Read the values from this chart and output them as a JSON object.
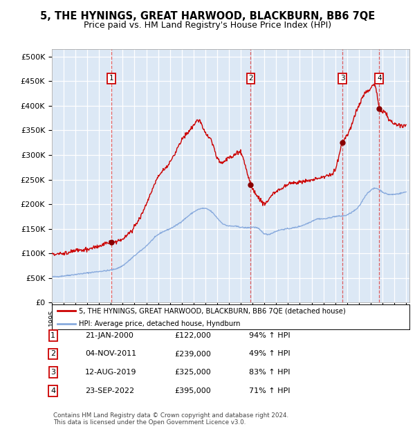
{
  "title": "5, THE HYNINGS, GREAT HARWOOD, BLACKBURN, BB6 7QE",
  "subtitle": "Price paid vs. HM Land Registry's House Price Index (HPI)",
  "title_fontsize": 10.5,
  "subtitle_fontsize": 9,
  "ylabel_ticks": [
    "£0",
    "£50K",
    "£100K",
    "£150K",
    "£200K",
    "£250K",
    "£300K",
    "£350K",
    "£400K",
    "£450K",
    "£500K"
  ],
  "ytick_values": [
    0,
    50000,
    100000,
    150000,
    200000,
    250000,
    300000,
    350000,
    400000,
    450000,
    500000
  ],
  "ylim": [
    0,
    515000
  ],
  "background_color": "#dce8f5",
  "legend_label_red": "5, THE HYNINGS, GREAT HARWOOD, BLACKBURN, BB6 7QE (detached house)",
  "legend_label_blue": "HPI: Average price, detached house, Hyndburn",
  "sales": [
    {
      "label": "1",
      "date": 2000.05,
      "price": 122000,
      "x_label": "21-JAN-2000",
      "price_label": "£122,000",
      "hpi_pct": "94%"
    },
    {
      "label": "2",
      "date": 2011.84,
      "price": 239000,
      "x_label": "04-NOV-2011",
      "price_label": "£239,000",
      "hpi_pct": "49%"
    },
    {
      "label": "3",
      "date": 2019.61,
      "price": 325000,
      "x_label": "12-AUG-2019",
      "price_label": "£325,000",
      "hpi_pct": "83%"
    },
    {
      "label": "4",
      "date": 2022.73,
      "price": 395000,
      "x_label": "23-SEP-2022",
      "price_label": "£395,000",
      "hpi_pct": "71%"
    }
  ],
  "red_color": "#cc0000",
  "blue_color": "#88aadd",
  "sale_marker_color": "#880000",
  "sale_vline_color": "#dd4444",
  "footnote": "Contains HM Land Registry data © Crown copyright and database right 2024.\nThis data is licensed under the Open Government Licence v3.0.",
  "hpi_keypoints_x": [
    1995.0,
    1996.0,
    1997.0,
    1998.0,
    1999.0,
    2000.0,
    2001.0,
    2002.0,
    2003.0,
    2004.0,
    2005.0,
    2006.0,
    2007.5,
    2008.5,
    2009.5,
    2010.5,
    2011.5,
    2012.5,
    2013.0,
    2014.0,
    2015.0,
    2016.0,
    2017.0,
    2017.5,
    2018.0,
    2019.0,
    2020.0,
    2020.5,
    2021.0,
    2021.5,
    2022.0,
    2022.5,
    2023.0,
    2023.5,
    2024.0,
    2024.5,
    2025.0
  ],
  "hpi_keypoints_y": [
    52000,
    54000,
    57000,
    60000,
    63000,
    66000,
    75000,
    95000,
    115000,
    138000,
    150000,
    165000,
    190000,
    185000,
    160000,
    155000,
    152000,
    150000,
    140000,
    145000,
    150000,
    155000,
    165000,
    170000,
    170000,
    175000,
    178000,
    185000,
    195000,
    215000,
    228000,
    232000,
    225000,
    220000,
    220000,
    222000,
    225000
  ],
  "red_keypoints_x": [
    1995.0,
    1996.0,
    1997.0,
    1998.0,
    1999.0,
    2000.05,
    2001.0,
    2002.0,
    2003.0,
    2004.0,
    2005.0,
    2006.0,
    2007.0,
    2007.5,
    2008.0,
    2008.5,
    2009.0,
    2009.5,
    2010.0,
    2010.5,
    2011.0,
    2011.84,
    2012.0,
    2012.5,
    2013.0,
    2013.5,
    2014.0,
    2015.0,
    2016.0,
    2017.0,
    2018.0,
    2018.5,
    2019.0,
    2019.61,
    2020.0,
    2020.5,
    2021.0,
    2021.5,
    2022.0,
    2022.5,
    2022.73,
    2023.0,
    2023.5,
    2024.0,
    2024.5,
    2025.0
  ],
  "red_keypoints_y": [
    100000,
    100000,
    105000,
    108000,
    115000,
    122000,
    130000,
    155000,
    200000,
    255000,
    285000,
    330000,
    360000,
    370000,
    345000,
    330000,
    295000,
    285000,
    295000,
    300000,
    305000,
    239000,
    230000,
    215000,
    200000,
    215000,
    225000,
    240000,
    245000,
    250000,
    255000,
    260000,
    270000,
    325000,
    340000,
    370000,
    400000,
    425000,
    435000,
    430000,
    395000,
    390000,
    375000,
    365000,
    360000,
    360000
  ]
}
